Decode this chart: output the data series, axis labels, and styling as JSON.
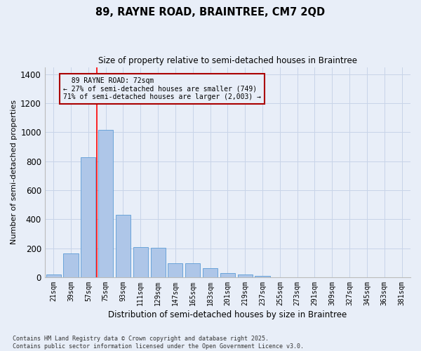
{
  "title_line1": "89, RAYNE ROAD, BRAINTREE, CM7 2QD",
  "title_line2": "Size of property relative to semi-detached houses in Braintree",
  "xlabel": "Distribution of semi-detached houses by size in Braintree",
  "ylabel": "Number of semi-detached properties",
  "categories": [
    "21sqm",
    "39sqm",
    "57sqm",
    "75sqm",
    "93sqm",
    "111sqm",
    "129sqm",
    "147sqm",
    "165sqm",
    "183sqm",
    "201sqm",
    "219sqm",
    "237sqm",
    "255sqm",
    "273sqm",
    "291sqm",
    "309sqm",
    "327sqm",
    "345sqm",
    "363sqm",
    "381sqm"
  ],
  "values": [
    18,
    162,
    828,
    1018,
    430,
    207,
    205,
    97,
    97,
    62,
    28,
    18,
    8,
    0,
    0,
    0,
    0,
    0,
    0,
    0,
    0
  ],
  "bar_color": "#aec6e8",
  "bar_edge_color": "#5b9bd5",
  "property_line_x": 2.5,
  "property_label": "89 RAYNE ROAD: 72sqm",
  "pct_smaller": "27% of semi-detached houses are smaller (749)",
  "pct_larger": "71% of semi-detached houses are larger (2,003)",
  "annotation_box_color": "#aa0000",
  "grid_color": "#c8d4e8",
  "bg_color": "#e8eef8",
  "ylim": [
    0,
    1450
  ],
  "yticks": [
    0,
    200,
    400,
    600,
    800,
    1000,
    1200,
    1400
  ],
  "footer_line1": "Contains HM Land Registry data © Crown copyright and database right 2025.",
  "footer_line2": "Contains public sector information licensed under the Open Government Licence v3.0."
}
